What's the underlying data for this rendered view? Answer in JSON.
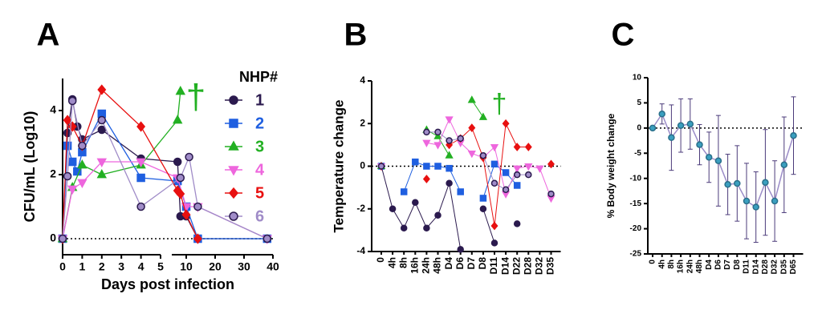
{
  "chart_data": [
    {
      "type": "line",
      "panel": "A",
      "ylabel": "CFU/mL (Log10)",
      "xlabel": "Days post infection",
      "xsegments": [
        [
          0,
          5
        ],
        [
          5,
          40
        ]
      ],
      "xticks": [
        0,
        1,
        2,
        3,
        4,
        5,
        10,
        20,
        30,
        40
      ],
      "ylim": [
        -0.5,
        5
      ],
      "yticks": [
        0,
        2,
        4
      ],
      "zero_line": true,
      "legend": "right",
      "legend_title": "NHP#",
      "annotation": "†",
      "annotation_color": "#22b022",
      "series": [
        {
          "name": "1",
          "color": "#2b1a4e",
          "marker": "circle",
          "x": [
            0,
            0.25,
            0.5,
            0.75,
            1,
            2,
            4,
            7,
            8,
            10,
            14,
            38
          ],
          "values": [
            0,
            3.3,
            4.35,
            3.5,
            3.1,
            3.4,
            2.5,
            2.4,
            0.7,
            0.7,
            0,
            0
          ]
        },
        {
          "name": "2",
          "color": "#1f5fe0",
          "marker": "square",
          "x": [
            0,
            0.25,
            0.5,
            0.75,
            1,
            2,
            4,
            7,
            10,
            14,
            38
          ],
          "values": [
            0,
            2.9,
            2.4,
            2.1,
            2.7,
            3.9,
            1.9,
            1.8,
            1.0,
            0,
            0
          ]
        },
        {
          "name": "3",
          "color": "#22b022",
          "marker": "triangle-up",
          "x": [
            0,
            0.5,
            1,
            2,
            4,
            7,
            8
          ],
          "values": [
            0,
            1.6,
            2.3,
            2.0,
            2.3,
            3.7,
            4.6
          ]
        },
        {
          "name": "4",
          "color": "#ee66dd",
          "marker": "triangle-down",
          "x": [
            0,
            0.5,
            1,
            2,
            4,
            7,
            10,
            14,
            38
          ],
          "values": [
            0,
            1.55,
            1.75,
            2.4,
            2.4,
            1.9,
            1.0,
            1.0,
            0
          ]
        },
        {
          "name": "5",
          "color": "#e81010",
          "marker": "diamond",
          "x": [
            0,
            0.25,
            0.5,
            1,
            2,
            4,
            7,
            8,
            10,
            14
          ],
          "values": [
            0,
            3.7,
            3.5,
            2.9,
            4.65,
            3.5,
            1.5,
            1.4,
            0.75,
            0
          ]
        },
        {
          "name": "6",
          "color": "#a08cc8",
          "edgecolor": "#2b1a4e",
          "marker": "circle",
          "x": [
            0,
            0.25,
            0.5,
            1,
            2,
            4,
            8,
            11,
            14,
            38
          ],
          "values": [
            0,
            1.95,
            4.3,
            2.9,
            3.7,
            1.0,
            1.9,
            2.55,
            1.0,
            0
          ]
        }
      ]
    },
    {
      "type": "line",
      "panel": "B",
      "ylabel": "Temperature change",
      "categories": [
        "0",
        "4h",
        "8h",
        "16h",
        "24h",
        "48h",
        "D4",
        "D6",
        "D7",
        "D8",
        "D11",
        "D14",
        "D22",
        "D28",
        "D32",
        "D35"
      ],
      "ylim": [
        -4,
        4
      ],
      "yticks": [
        -4,
        -2,
        0,
        2,
        4
      ],
      "zero_line": true,
      "annotation": "†",
      "annotation_color": "#22b022",
      "series": [
        {
          "color": "#2b1a4e",
          "marker": "circle",
          "values": [
            0,
            -2,
            -2.9,
            -1.7,
            -2.9,
            -2.3,
            -0.8,
            -3.9,
            null,
            -2,
            -3.6,
            null,
            -2.7,
            null,
            null,
            null
          ]
        },
        {
          "color": "#1f5fe0",
          "marker": "square",
          "values": [
            0,
            null,
            -1.2,
            0.2,
            0,
            0,
            -0.1,
            -1.2,
            null,
            -1.5,
            0.1,
            -0.3,
            -0.9,
            null,
            null,
            null
          ]
        },
        {
          "color": "#22b022",
          "marker": "triangle-up",
          "values": [
            0,
            null,
            null,
            null,
            1.7,
            1.4,
            0.5,
            null,
            3.1,
            2.3,
            null,
            null,
            null,
            null,
            null,
            null
          ]
        },
        {
          "color": "#ee66dd",
          "marker": "triangle-down",
          "values": [
            0,
            null,
            null,
            null,
            1.1,
            1.0,
            2.2,
            1.1,
            0.6,
            0.4,
            0.9,
            -1.3,
            -0.1,
            0,
            -0.1,
            -1.5
          ]
        },
        {
          "color": "#e81010",
          "marker": "diamond",
          "values": [
            0,
            null,
            null,
            null,
            -0.6,
            null,
            1.0,
            1.3,
            1.8,
            0.4,
            -2.8,
            2.0,
            0.9,
            0.9,
            null,
            0.1
          ]
        },
        {
          "color": "#a08cc8",
          "edgecolor": "#2b1a4e",
          "marker": "circle",
          "values": [
            0,
            null,
            null,
            null,
            1.6,
            1.6,
            1.2,
            1.3,
            null,
            0.5,
            -0.8,
            -1.1,
            -0.4,
            -0.4,
            null,
            -1.3
          ]
        }
      ]
    },
    {
      "type": "line",
      "panel": "C",
      "ylabel": "% Body weight change",
      "categories": [
        "0",
        "4h",
        "8h",
        "16h",
        "24h",
        "48h",
        "D4",
        "D6",
        "D7",
        "D8",
        "D11",
        "D14",
        "D28",
        "D32",
        "D35",
        "D65"
      ],
      "ylim": [
        -25,
        10
      ],
      "yticks": [
        -25,
        -20,
        -15,
        -10,
        -5,
        0,
        5,
        10
      ],
      "zero_line": true,
      "series": [
        {
          "color": "#9b8cc8",
          "marker_color": "#3a9fbf",
          "error_color": "#4b3b7a",
          "marker": "circle",
          "values": [
            0,
            2.8,
            -1.9,
            0.5,
            0.8,
            -3.3,
            -5.8,
            -6.5,
            -11.2,
            -11,
            -14.5,
            -15.7,
            -10.8,
            -14.5,
            -7.3,
            -1.5
          ],
          "errors": [
            0,
            2,
            6.5,
            5.3,
            5,
            4,
            5,
            9,
            6,
            7.5,
            7.5,
            7,
            10.5,
            8,
            9.5,
            7.7
          ]
        }
      ]
    }
  ]
}
